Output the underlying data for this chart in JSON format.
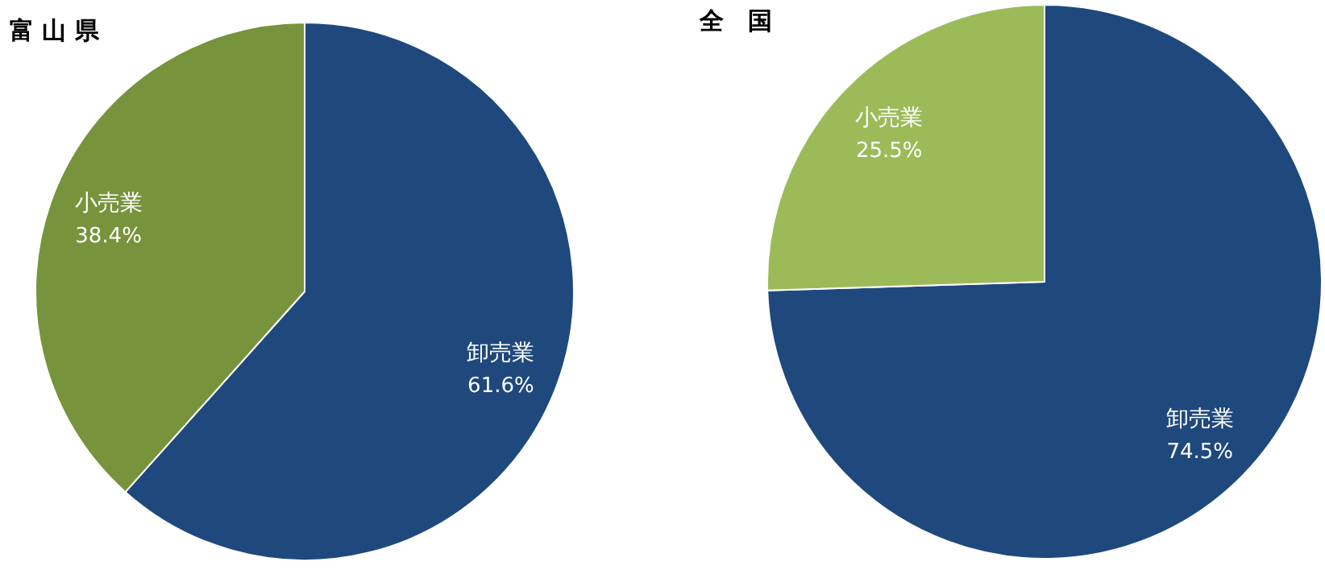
{
  "chart_data": [
    {
      "type": "pie",
      "title": "富 山 県",
      "categories": [
        "卸売業",
        "小売業"
      ],
      "values": [
        61.6,
        38.4
      ],
      "colors": [
        "#1f497d",
        "#77933c"
      ],
      "value_labels": [
        "61.6%",
        "38.4%"
      ]
    },
    {
      "type": "pie",
      "title": "全　国",
      "categories": [
        "卸売業",
        "小売業"
      ],
      "values": [
        74.5,
        25.5
      ],
      "colors": [
        "#1f497d",
        "#9bbb59"
      ],
      "value_labels": [
        "74.5%",
        "25.5%"
      ]
    }
  ]
}
